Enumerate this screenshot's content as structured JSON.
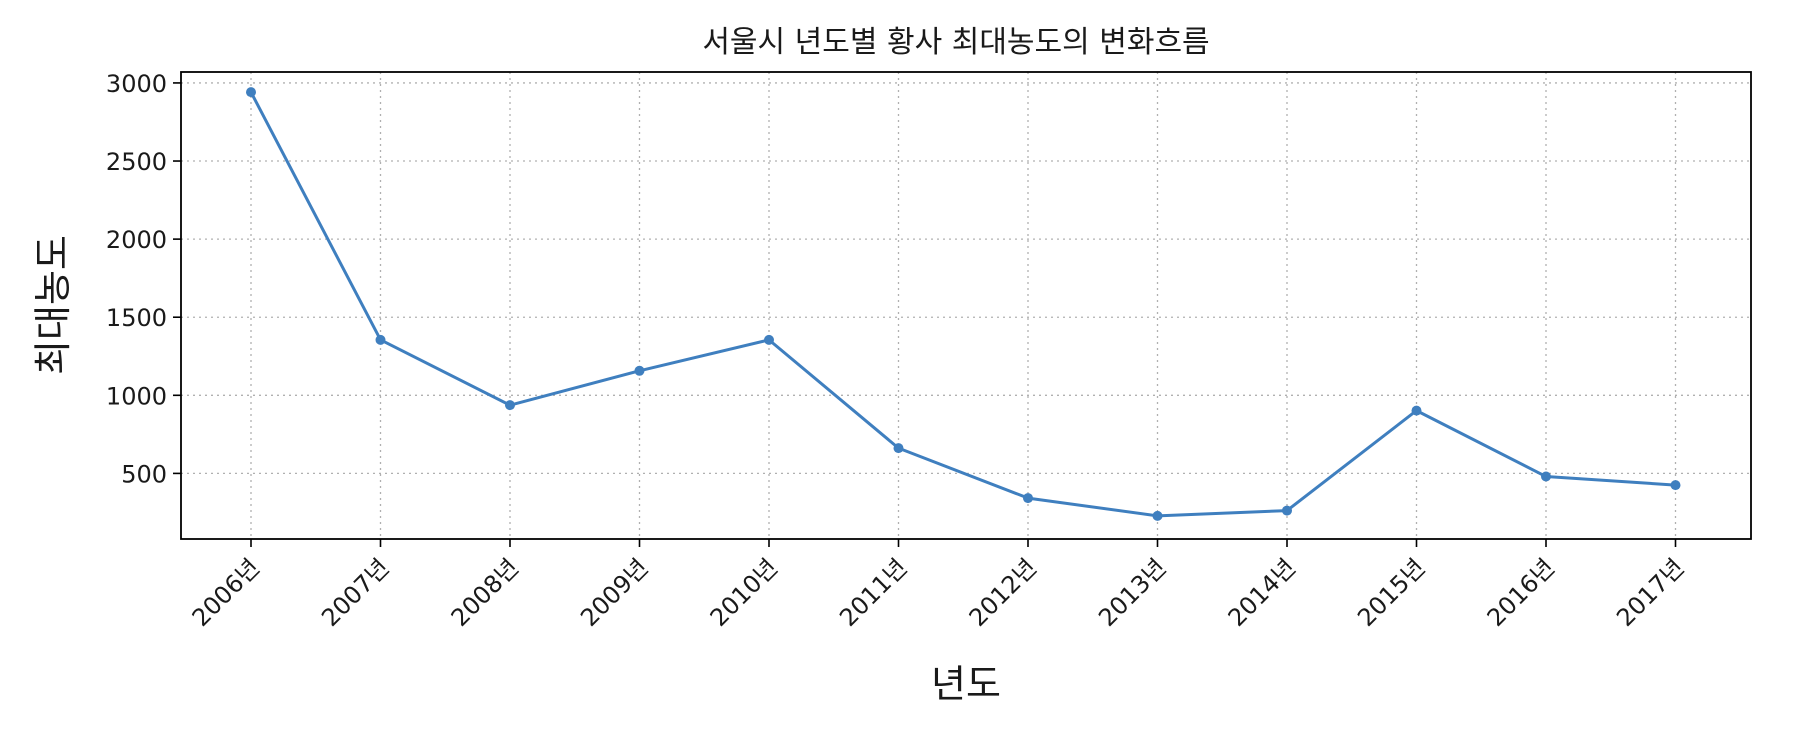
{
  "chart_data": {
    "type": "line",
    "title": "서울시 년도별 황사 최대농도의 변화흐름",
    "xlabel": "년도",
    "ylabel": "최대농도",
    "categories": [
      "2006년",
      "2007년",
      "2008년",
      "2009년",
      "2010년",
      "2011년",
      "2012년",
      "2013년",
      "2014년",
      "2015년",
      "2016년",
      "2017년"
    ],
    "series": [
      {
        "values": [
          2941,
          1355,
          937,
          1157,
          1355,
          662,
          342,
          228,
          262,
          902,
          480,
          425
        ]
      }
    ],
    "yticks": [
      500,
      1000,
      1500,
      2000,
      2500,
      3000
    ],
    "ylim": [
      80,
      3070
    ],
    "grid": true,
    "marker": "dot",
    "line_color": "#3f7fbf"
  }
}
